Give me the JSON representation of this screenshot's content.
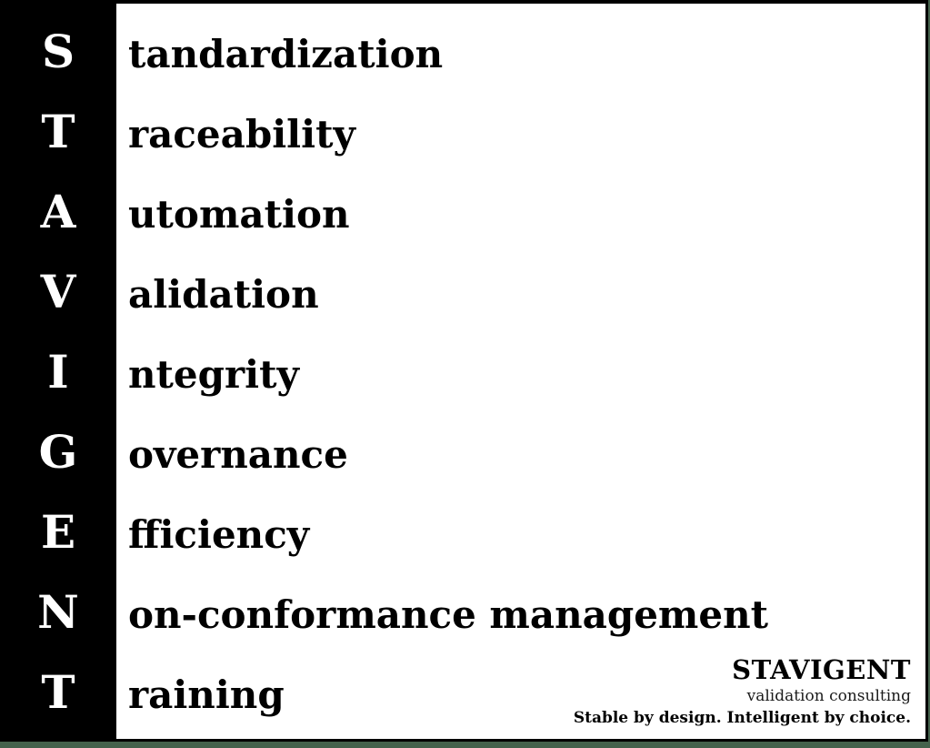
{
  "slide": {
    "acronym": "STAVIGENT",
    "rows": [
      {
        "letter": "S",
        "word": "tandardization"
      },
      {
        "letter": "T",
        "word": "raceability"
      },
      {
        "letter": "A",
        "word": "utomation"
      },
      {
        "letter": "V",
        "word": "alidation"
      },
      {
        "letter": "I",
        "word": "ntegrity"
      },
      {
        "letter": "G",
        "word": "overnance"
      },
      {
        "letter": "E",
        "word": "fficiency"
      },
      {
        "letter": "N",
        "word": "on-conformance management"
      },
      {
        "letter": "T",
        "word": "raining"
      }
    ]
  },
  "logo": {
    "name": "STAVIGENT",
    "subtitle": "validation consulting",
    "tagline": "Stable by design. Intelligent by choice."
  },
  "colors": {
    "accent_green": "#44624c",
    "sidebar_black": "#000000",
    "text_black": "#000000",
    "paper_white": "#ffffff"
  }
}
